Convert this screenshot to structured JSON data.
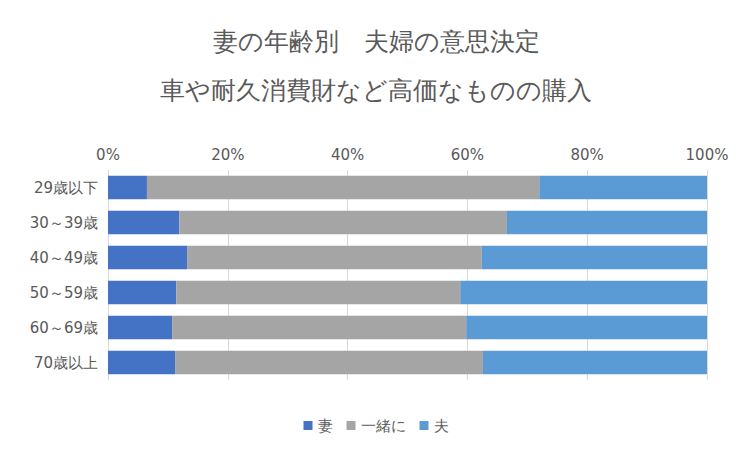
{
  "chart_data": {
    "type": "bar",
    "title": "妻の年齢別　夫婦の意思決定",
    "subtitle": "車や耐久消費財など高価なものの購入",
    "orientation": "horizontal",
    "stacked": true,
    "grid": true,
    "legend": "bottom",
    "categories": [
      "29歳以下",
      "30～39歳",
      "40～49歳",
      "50～59歳",
      "60～69歳",
      "70歳以上"
    ],
    "series": [
      {
        "name": "妻",
        "color": "#4472C4",
        "values": [
          6.5,
          11.9,
          13.2,
          11.4,
          10.7,
          11.2
        ]
      },
      {
        "name": "一緒に",
        "color": "#A5A5A5",
        "values": [
          65.5,
          54.7,
          49.2,
          47.4,
          49.1,
          51.4
        ]
      },
      {
        "name": "夫",
        "color": "#5B9BD5",
        "values": [
          28.0,
          33.4,
          37.6,
          41.2,
          40.2,
          37.4
        ]
      }
    ],
    "xlim": [
      0,
      100
    ],
    "xticks": [
      {
        "value": 0,
        "label": "0%"
      },
      {
        "value": 20,
        "label": "20%"
      },
      {
        "value": 40,
        "label": "40%"
      },
      {
        "value": 60,
        "label": "60%"
      },
      {
        "value": 80,
        "label": "80%"
      },
      {
        "value": 100,
        "label": "100%"
      }
    ]
  }
}
